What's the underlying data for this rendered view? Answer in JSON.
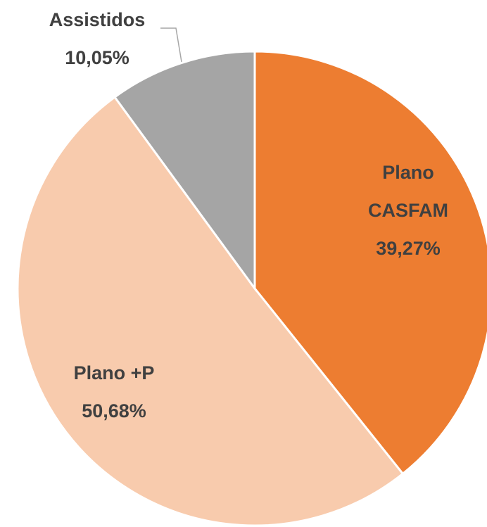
{
  "chart_data": {
    "type": "pie",
    "categories": [
      "Plano CASFAM",
      "Plano +P",
      "Assistidos"
    ],
    "values": [
      39.27,
      50.68,
      10.05
    ],
    "value_labels": [
      "39,27%",
      "50,68%",
      "10,05%"
    ],
    "colors": [
      "#ED7D31",
      "#F8CBAD",
      "#A5A5A5"
    ]
  }
}
